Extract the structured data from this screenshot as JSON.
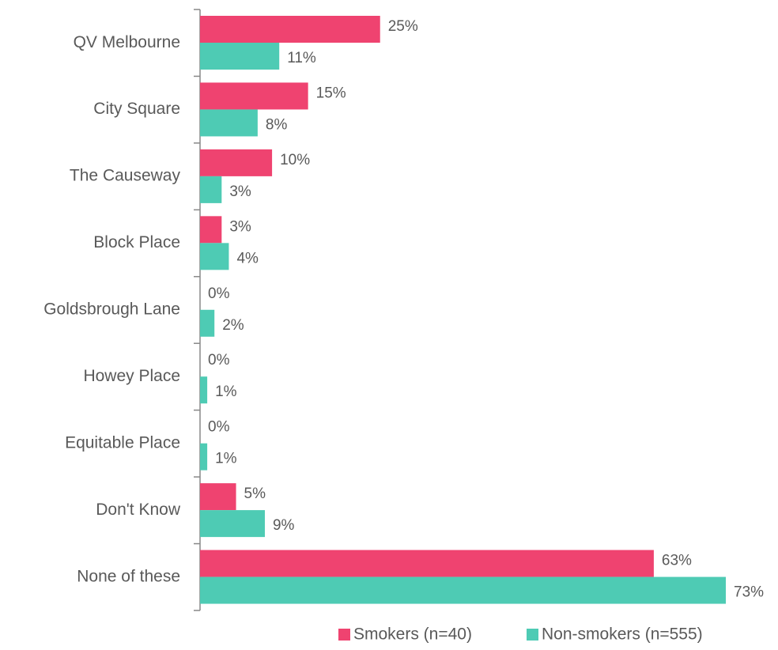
{
  "chart_data": {
    "type": "hbar",
    "categories": [
      "QV Melbourne",
      "City Square",
      "The Causeway",
      "Block Place",
      "Goldsbrough Lane",
      "Howey Place",
      "Equitable Place",
      "Don't Know",
      "None of these"
    ],
    "series": [
      {
        "name": "Smokers (n=40)",
        "color": "#ef4370",
        "values": [
          25,
          15,
          10,
          3,
          0,
          0,
          0,
          5,
          63
        ],
        "value_labels": [
          "25%",
          "15%",
          "10%",
          "3%",
          "0%",
          "0%",
          "0%",
          "5%",
          "63%"
        ]
      },
      {
        "name": "Non-smokers (n=555)",
        "color": "#4ecbb4",
        "values": [
          11,
          8,
          3,
          4,
          2,
          1,
          1,
          9,
          73
        ],
        "value_labels": [
          "11%",
          "8%",
          "3%",
          "4%",
          "2%",
          "1%",
          "1%",
          "9%",
          "73%"
        ]
      }
    ],
    "legend": "bottom"
  }
}
